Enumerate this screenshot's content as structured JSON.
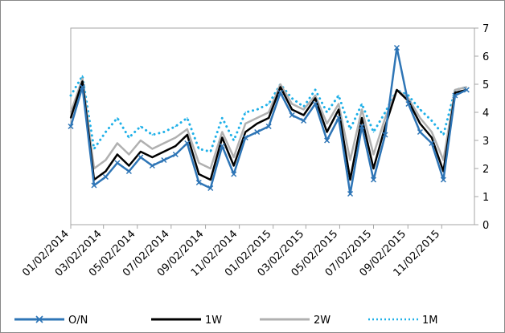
{
  "chart_data": {
    "type": "line",
    "title": "",
    "xlabel": "",
    "ylabel": "",
    "ylim": [
      0,
      7
    ],
    "y_ticks": [
      "0",
      "1",
      "2",
      "3",
      "4",
      "5",
      "6",
      "7"
    ],
    "y_axis_side": "right",
    "grid": false,
    "legend_position": "bottom",
    "x_tick_labels": [
      "01/02/2014",
      "03/02/2014",
      "05/02/2014",
      "07/02/2014",
      "09/02/2014",
      "11/02/2014",
      "01/02/2015",
      "03/02/2015",
      "05/02/2015",
      "07/02/2015",
      "09/02/2015",
      "11/02/2015"
    ],
    "x_start": "2014-01-02",
    "x_end": "2015-12-31",
    "dates": [
      "2014-01-02",
      "2014-01-23",
      "2014-02-13",
      "2014-03-06",
      "2014-03-27",
      "2014-04-17",
      "2014-05-08",
      "2014-05-29",
      "2014-06-19",
      "2014-07-10",
      "2014-07-31",
      "2014-08-21",
      "2014-09-11",
      "2014-10-02",
      "2014-10-23",
      "2014-11-13",
      "2014-12-04",
      "2014-12-25",
      "2015-01-15",
      "2015-02-05",
      "2015-02-26",
      "2015-03-19",
      "2015-04-09",
      "2015-04-30",
      "2015-05-21",
      "2015-06-11",
      "2015-07-02",
      "2015-07-23",
      "2015-08-13",
      "2015-09-03",
      "2015-09-24",
      "2015-10-15",
      "2015-11-05",
      "2015-11-26",
      "2015-12-17"
    ],
    "series": [
      {
        "name": "O/N",
        "color": "#2e75b6",
        "style": "solid-x",
        "values": [
          3.5,
          4.9,
          1.4,
          1.7,
          2.2,
          1.9,
          2.4,
          2.1,
          2.3,
          2.5,
          2.9,
          1.5,
          1.3,
          2.8,
          1.8,
          3.1,
          3.3,
          3.5,
          4.7,
          3.9,
          3.7,
          4.3,
          3.0,
          3.8,
          1.1,
          3.5,
          1.6,
          3.2,
          6.3,
          4.3,
          3.3,
          2.9,
          1.6,
          4.6,
          4.8
        ]
      },
      {
        "name": "1W",
        "color": "#000000",
        "style": "solid",
        "values": [
          3.8,
          5.1,
          1.6,
          1.9,
          2.5,
          2.1,
          2.6,
          2.4,
          2.6,
          2.8,
          3.2,
          1.8,
          1.6,
          3.1,
          2.1,
          3.3,
          3.6,
          3.8,
          4.9,
          4.1,
          3.9,
          4.5,
          3.3,
          4.1,
          1.6,
          3.8,
          2.0,
          3.5,
          4.8,
          4.4,
          3.6,
          3.1,
          1.9,
          4.7,
          4.8
        ]
      },
      {
        "name": "2W",
        "color": "#b0b0b0",
        "style": "solid",
        "values": [
          4.0,
          5.2,
          2.0,
          2.3,
          2.9,
          2.5,
          3.0,
          2.7,
          2.9,
          3.1,
          3.4,
          2.2,
          2.0,
          3.3,
          2.4,
          3.6,
          3.8,
          4.0,
          5.0,
          4.3,
          4.1,
          4.6,
          3.6,
          4.3,
          2.3,
          4.1,
          2.5,
          3.8,
          4.8,
          4.5,
          3.8,
          3.3,
          2.3,
          4.8,
          4.9
        ]
      },
      {
        "name": "1M",
        "color": "#1fb0e8",
        "style": "dotted",
        "values": [
          4.6,
          5.3,
          2.7,
          3.3,
          3.8,
          3.1,
          3.5,
          3.2,
          3.3,
          3.5,
          3.8,
          2.7,
          2.6,
          3.8,
          3.0,
          4.0,
          4.1,
          4.3,
          5.0,
          4.5,
          4.2,
          4.8,
          4.0,
          4.6,
          3.4,
          4.3,
          3.3,
          4.0,
          4.8,
          4.6,
          4.1,
          3.7,
          3.2,
          4.8,
          4.9
        ]
      }
    ]
  }
}
